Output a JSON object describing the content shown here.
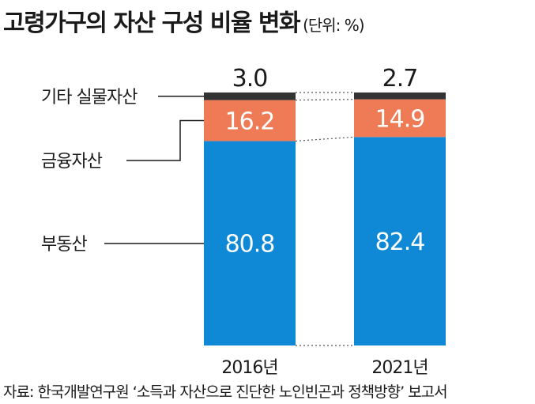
{
  "title": "고령가구의 자산 구성 비율 변화",
  "unit": "(단위: %)",
  "source": "자료: 한국개발연구원 ‘소득과 자산으로 진단한 노인빈곤과 정책방향’ 보고서",
  "chart_data": {
    "type": "bar",
    "stacked": true,
    "categories": [
      "2016년",
      "2021년"
    ],
    "series": [
      {
        "name": "부동산",
        "values": [
          80.8,
          82.4
        ],
        "color": "#0f88d6"
      },
      {
        "name": "금융자산",
        "values": [
          16.2,
          14.9
        ],
        "color": "#ee7b56"
      },
      {
        "name": "기타 실물자산",
        "values": [
          3.0,
          2.7
        ],
        "color": "#333333"
      }
    ],
    "value_labels": [
      [
        "80.8",
        "82.4"
      ],
      [
        "16.2",
        "14.9"
      ],
      [
        "3.0",
        "2.7"
      ]
    ],
    "ylim": [
      0,
      100
    ],
    "grid": false,
    "legend": "left, with leader lines"
  }
}
